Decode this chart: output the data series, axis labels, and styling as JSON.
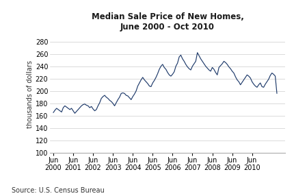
{
  "title_line1": "Median Sale Price of New Homes,",
  "title_line2": "June 2000 - Oct 2010",
  "ylabel": "thousands of dollars",
  "source": "Source: U.S. Census Bureau",
  "line_color": "#1F3B6B",
  "background_color": "#ffffff",
  "ylim": [
    100,
    290
  ],
  "yticks": [
    100,
    120,
    140,
    160,
    180,
    200,
    220,
    240,
    260,
    280
  ],
  "values": [
    165,
    169,
    172,
    170,
    168,
    166,
    173,
    176,
    174,
    172,
    170,
    172,
    168,
    164,
    167,
    170,
    173,
    176,
    178,
    179,
    177,
    176,
    173,
    175,
    171,
    168,
    170,
    176,
    181,
    188,
    191,
    193,
    190,
    188,
    185,
    183,
    180,
    176,
    181,
    186,
    190,
    196,
    197,
    196,
    193,
    192,
    189,
    186,
    191,
    195,
    200,
    208,
    213,
    218,
    222,
    218,
    215,
    212,
    208,
    207,
    213,
    217,
    222,
    228,
    235,
    240,
    243,
    238,
    235,
    230,
    226,
    224,
    227,
    231,
    240,
    245,
    255,
    258,
    252,
    248,
    243,
    239,
    236,
    234,
    240,
    244,
    248,
    262,
    257,
    252,
    248,
    244,
    240,
    237,
    234,
    232,
    238,
    235,
    230,
    226,
    238,
    241,
    244,
    248,
    246,
    243,
    239,
    236,
    232,
    229,
    223,
    218,
    215,
    210,
    214,
    218,
    222,
    226,
    224,
    221,
    215,
    211,
    208,
    206,
    210,
    213,
    207,
    206,
    211,
    215,
    219,
    225,
    229,
    227,
    224,
    196
  ],
  "xtick_positions": [
    0,
    12,
    24,
    36,
    48,
    60,
    72,
    84,
    96,
    108,
    120
  ],
  "xtick_labels": [
    "Jun\n2000",
    "Jun\n2001",
    "Jun\n2002",
    "Jun\n2003",
    "Jun\n2004",
    "Jun\n2005",
    "Jun\n2006",
    "Jun\n2007",
    "Jun\n2008",
    "Jun\n2009",
    "Jun\n2010"
  ]
}
